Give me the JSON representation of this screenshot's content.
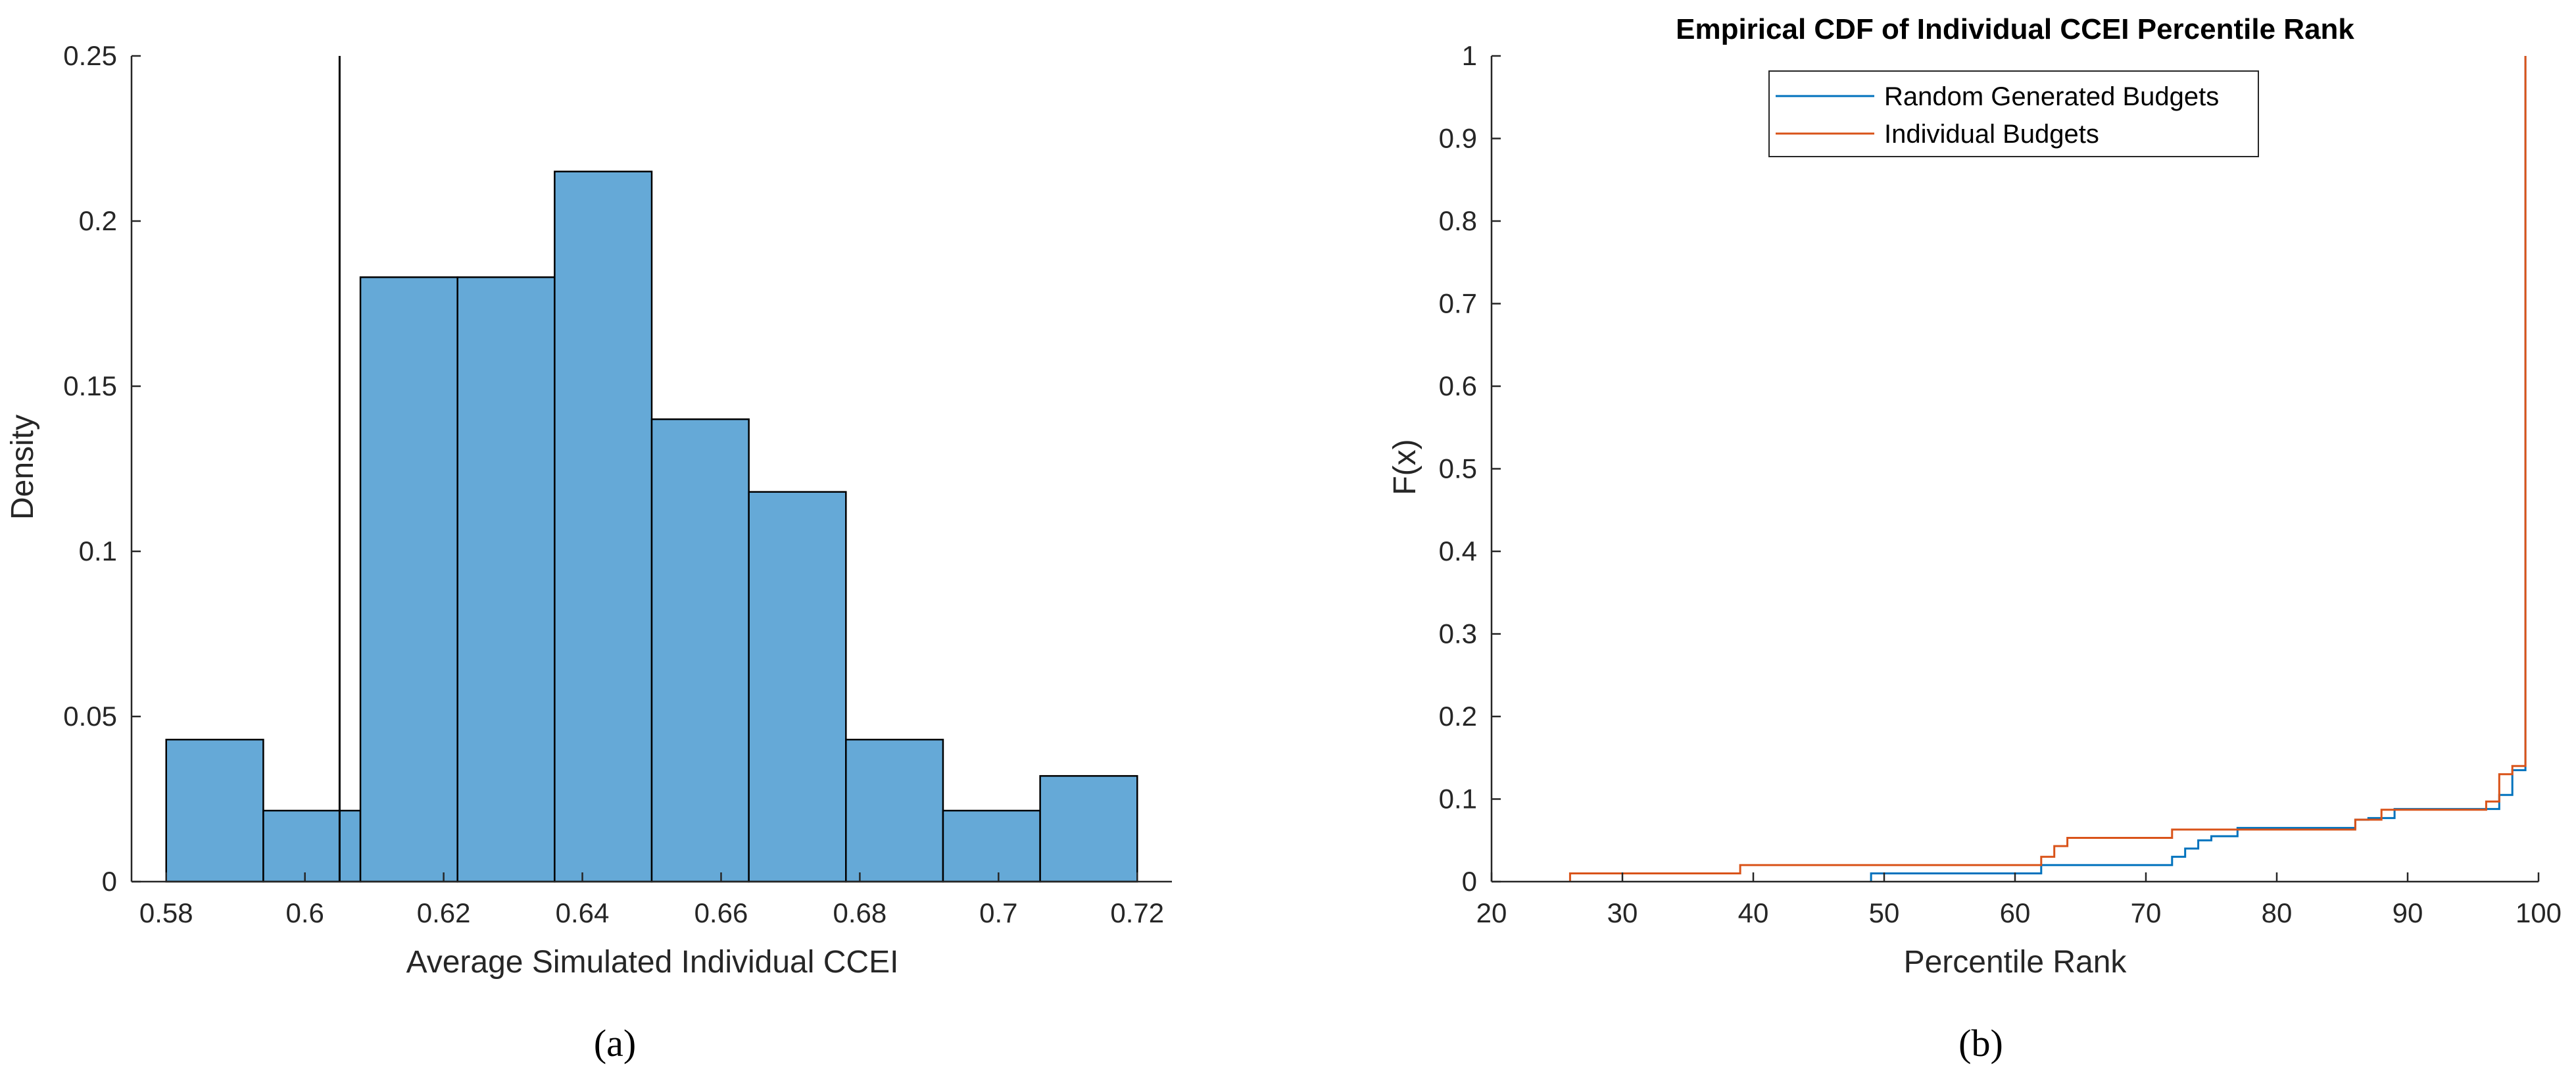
{
  "panel_labels": {
    "a": "(a)",
    "b": "(b)"
  },
  "chart_data": [
    {
      "type": "histogram",
      "title": "",
      "xlabel": "Average Simulated Individual CCEI",
      "ylabel": "Density",
      "xlim": [
        0.575,
        0.725
      ],
      "ylim": [
        0,
        0.25
      ],
      "xticks": [
        0.58,
        0.6,
        0.62,
        0.64,
        0.66,
        0.68,
        0.7,
        0.72
      ],
      "xtick_labels": [
        "0.58",
        "0.6",
        "0.62",
        "0.64",
        "0.66",
        "0.68",
        "0.7",
        "0.72"
      ],
      "yticks": [
        0,
        0.05,
        0.1,
        0.15,
        0.2,
        0.25
      ],
      "ytick_labels": [
        "0",
        "0.05",
        "0.1",
        "0.15",
        "0.2",
        "0.25"
      ],
      "bin_edges": [
        0.58,
        0.594,
        0.608,
        0.622,
        0.636,
        0.65,
        0.664,
        0.678,
        0.692,
        0.706,
        0.72
      ],
      "values": [
        0.043,
        0.0215,
        0.183,
        0.183,
        0.215,
        0.14,
        0.118,
        0.043,
        0.0215,
        0.032
      ],
      "reference_line_x": 0.605,
      "bar_color": "#65a9d7",
      "edge_color": "#000000"
    },
    {
      "type": "line",
      "title": "Empirical CDF of Individual CCEI Percentile Rank",
      "xlabel": "Percentile Rank",
      "ylabel": "F(x)",
      "xlim": [
        20,
        100
      ],
      "ylim": [
        0,
        1
      ],
      "xticks": [
        20,
        30,
        40,
        50,
        60,
        70,
        80,
        90,
        100
      ],
      "xtick_labels": [
        "20",
        "30",
        "40",
        "50",
        "60",
        "70",
        "80",
        "90",
        "100"
      ],
      "yticks": [
        0,
        0.1,
        0.2,
        0.3,
        0.4,
        0.5,
        0.6,
        0.7,
        0.8,
        0.9,
        1
      ],
      "ytick_labels": [
        "0",
        "0.1",
        "0.2",
        "0.3",
        "0.4",
        "0.5",
        "0.6",
        "0.7",
        "0.8",
        "0.9",
        "1"
      ],
      "legend_position": "top-center",
      "series": [
        {
          "name": "Random Generated Budgets",
          "color": "#0072bd",
          "x": [
            49,
            49,
            51,
            51,
            62,
            62,
            72,
            72,
            73,
            73,
            74,
            74,
            75,
            75,
            77,
            77,
            86,
            86,
            87,
            87,
            89,
            89,
            97,
            97,
            98,
            98,
            99,
            99
          ],
          "y": [
            0,
            0.01,
            0.01,
            0.01,
            0.01,
            0.02,
            0.02,
            0.03,
            0.03,
            0.04,
            0.04,
            0.05,
            0.05,
            0.055,
            0.055,
            0.065,
            0.065,
            0.075,
            0.075,
            0.077,
            0.077,
            0.088,
            0.088,
            0.105,
            0.105,
            0.135,
            0.135,
            1.0
          ]
        },
        {
          "name": "Individual Budgets",
          "color": "#d95319",
          "x": [
            26,
            26,
            39,
            39,
            62,
            62,
            63,
            63,
            64,
            64,
            72,
            72,
            86,
            86,
            88,
            88,
            96,
            96,
            97,
            97,
            98,
            98,
            99,
            99
          ],
          "y": [
            0,
            0.01,
            0.01,
            0.02,
            0.02,
            0.03,
            0.03,
            0.043,
            0.043,
            0.053,
            0.053,
            0.063,
            0.063,
            0.075,
            0.075,
            0.087,
            0.087,
            0.097,
            0.097,
            0.13,
            0.13,
            0.14,
            0.14,
            1.0
          ]
        }
      ]
    }
  ]
}
